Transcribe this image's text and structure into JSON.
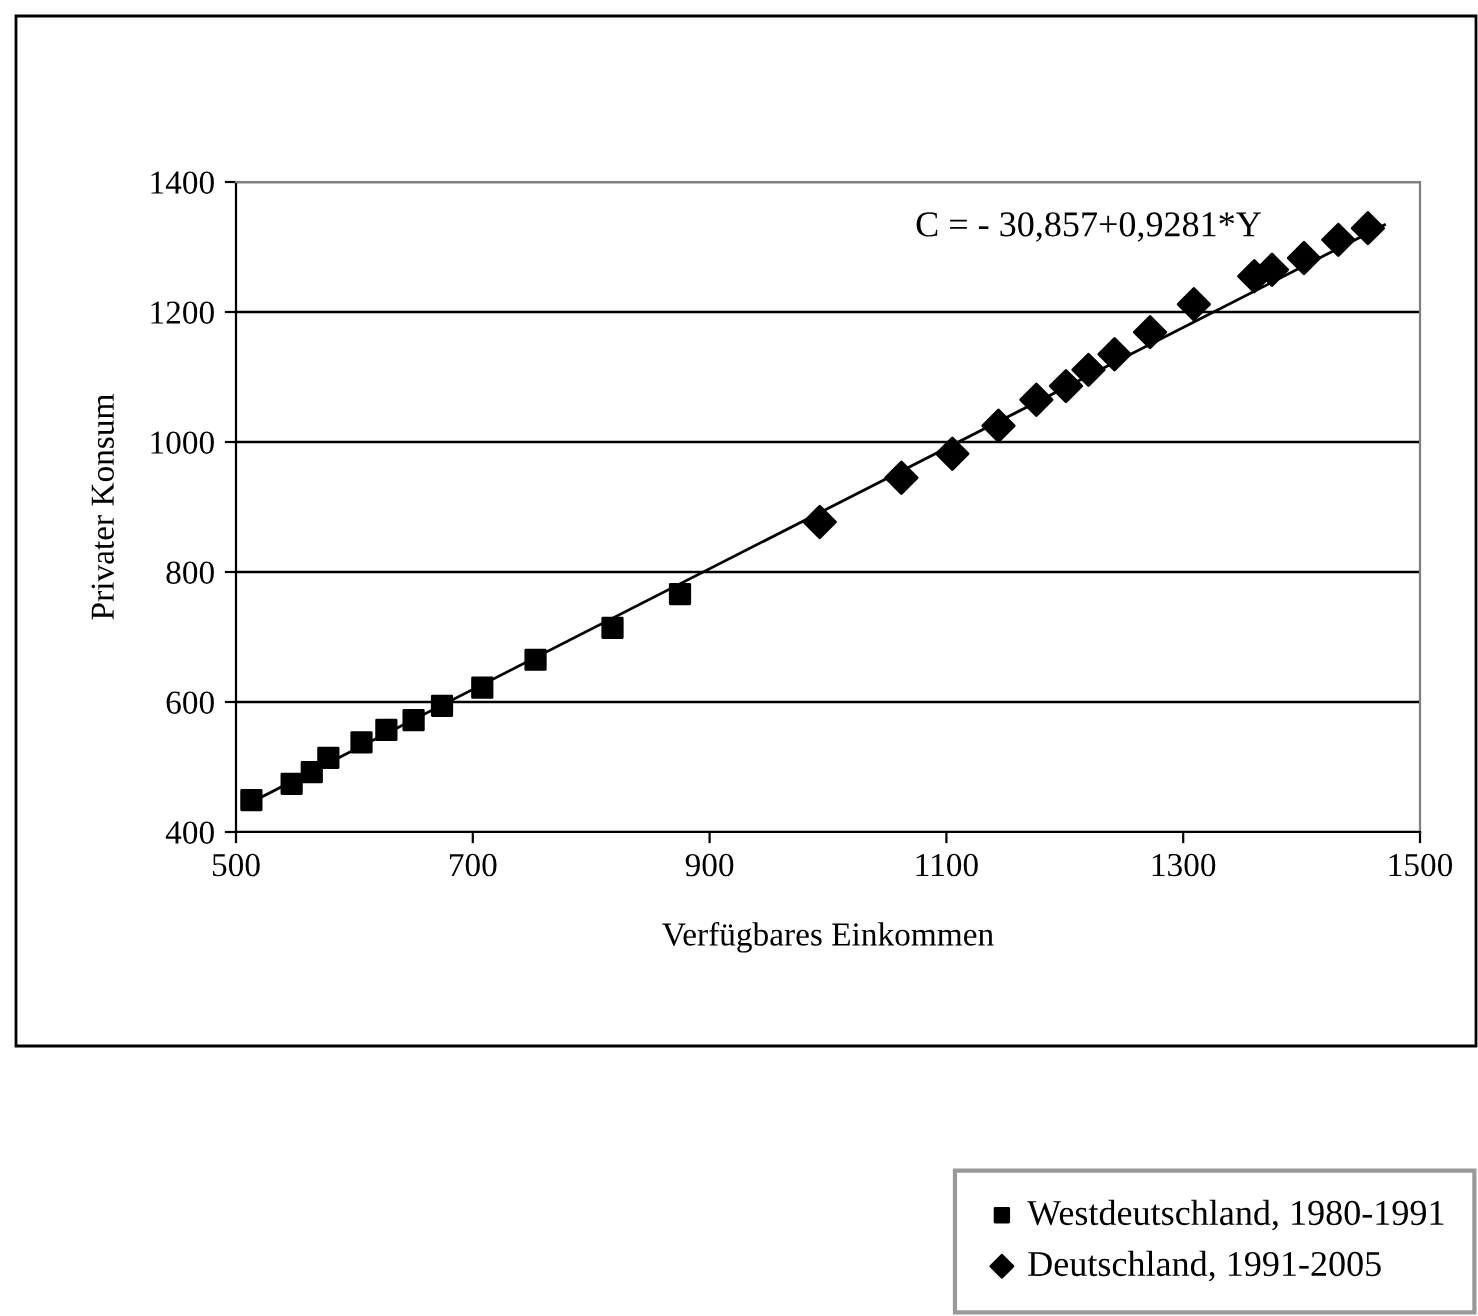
{
  "chart_data": {
    "type": "scatter",
    "xlabel": "Verfügbares Einkommen",
    "ylabel": "Privater Konsum",
    "xlim": [
      500,
      1500
    ],
    "xticks": [
      500,
      700,
      900,
      1100,
      1300,
      1500
    ],
    "ylim": [
      400,
      1400
    ],
    "yticks": [
      400,
      600,
      800,
      1000,
      1200,
      1400
    ],
    "grid": "y",
    "legend": "bottom right",
    "annotations": [
      "C = - 30,857+0,9281*Y"
    ],
    "series": [
      {
        "name": "Westdeutschland, 1980-1991",
        "color": "#000000",
        "marker": "square",
        "x": [
          513,
          547,
          564,
          578,
          606,
          627,
          650,
          674,
          708,
          753,
          818,
          875
        ],
        "values": [
          449,
          474,
          492,
          514,
          538,
          557,
          572,
          594,
          622,
          665,
          714,
          766
        ]
      },
      {
        "name": "Deutschland, 1991-2005",
        "color": "#000000",
        "marker": "diamond",
        "x": [
          993,
          1062,
          1105,
          1144,
          1176,
          1201,
          1220,
          1242,
          1272,
          1309,
          1360,
          1375,
          1402,
          1431,
          1456
        ],
        "values": [
          877,
          945,
          982,
          1025,
          1065,
          1086,
          1111,
          1135,
          1169,
          1212,
          1255,
          1265,
          1283,
          1311,
          1329
        ]
      },
      {
        "type": "line",
        "color": "#000000",
        "marker": "none",
        "x": [
          510,
          1470
        ],
        "values": [
          443,
          1334
        ]
      }
    ]
  }
}
